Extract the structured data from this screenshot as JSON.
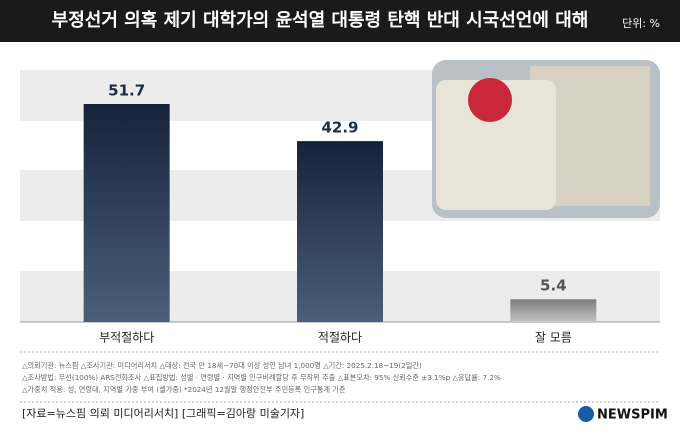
{
  "chart_data": {
    "type": "bar",
    "title": "부정선거 의혹 제기 대학가의 윤석열 대통령 탄핵 반대 시국선언에 대해",
    "unit": "단위: %",
    "categories": [
      "부적절하다",
      "적절하다",
      "잘 모름"
    ],
    "values": [
      51.7,
      42.9,
      5.4
    ],
    "colors": [
      "#1d2e47",
      "#1d2e47",
      "#8c8c8c"
    ],
    "ylim": [
      0,
      60
    ],
    "notes": [
      "△의뢰기관: 뉴스핌  △조사기관: 미디어리서치  △대상: 전국 만 18세~70대 이상 성인 남녀 1,000명  △기간: 2025.2.18~19(2일간)",
      "△조사방법: 무선(100%) ARS전화조사  △표집방법: 성별 · 연령별 · 지역별 인구비례할당 후 무작위 추출  △표본오차: 95% 신뢰수준 ±3.1%p  △응답률: 7.2%",
      "△가중치 적용: 성, 연령대, 지역별 가중 부여 (셀가중) *2024년 12월말 행정안전부 주민등록 인구통계 기준"
    ],
    "source": "[자료=뉴스핌 의뢰 미디어리서치] [그래픽=김아랑 미술기자]",
    "logo": "NEWSPIM"
  }
}
